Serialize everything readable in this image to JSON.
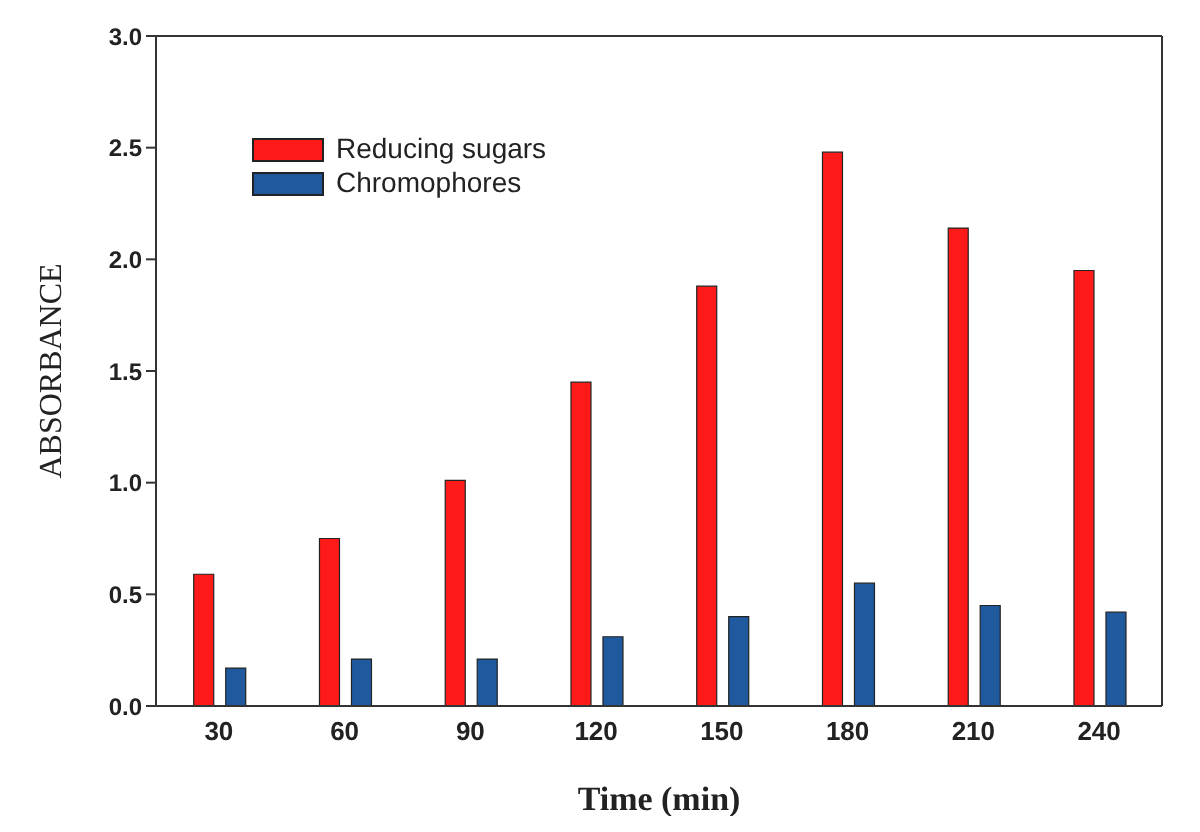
{
  "chart_data": {
    "type": "bar",
    "xlabel": "Time (min)",
    "ylabel": "ABSORBANCE",
    "categories": [
      "30",
      "60",
      "90",
      "120",
      "150",
      "180",
      "210",
      "240"
    ],
    "series": [
      {
        "name": "Reducing sugars",
        "color": "#ff1a1a",
        "values": [
          0.59,
          0.75,
          1.01,
          1.45,
          1.88,
          2.48,
          2.14,
          1.95
        ]
      },
      {
        "name": "Chromophores",
        "color": "#1f5a9e",
        "values": [
          0.17,
          0.21,
          0.21,
          0.31,
          0.4,
          0.55,
          0.45,
          0.42
        ]
      }
    ],
    "ylim": [
      0,
      3
    ],
    "yticks": [
      {
        "value": 0,
        "label": "0.0"
      },
      0.5,
      {
        "value": 1,
        "label": "1.0"
      },
      1.5,
      {
        "value": 2,
        "label": "2.0"
      },
      2.5,
      {
        "value": 3,
        "label": "3.0"
      }
    ],
    "grid": false,
    "legend": "top left"
  }
}
